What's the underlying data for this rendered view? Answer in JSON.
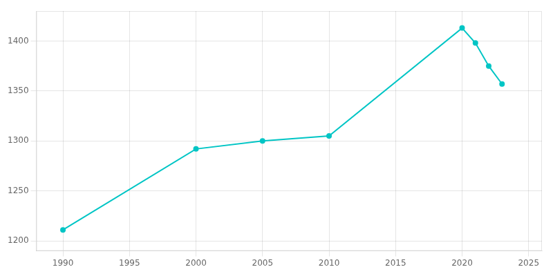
{
  "chart_data": {
    "type": "line",
    "x": [
      1990,
      2000,
      2005,
      2010,
      2020,
      2021,
      2022,
      2023
    ],
    "values": [
      1211,
      1292,
      1300,
      1305,
      1413,
      1398,
      1375,
      1357
    ],
    "color": "#00C5C5",
    "marker": "circle",
    "xlim": [
      1988,
      2026
    ],
    "ylim": [
      1190,
      1430
    ],
    "xticks": [
      1990,
      1995,
      2000,
      2005,
      2010,
      2015,
      2020,
      2025
    ],
    "yticks": [
      1200,
      1250,
      1300,
      1350,
      1400
    ],
    "grid": true
  }
}
